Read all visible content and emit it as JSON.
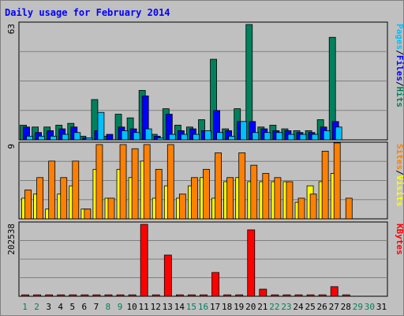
{
  "chart_data": {
    "type": "bar",
    "title": "Daily usage for February 2014",
    "categories": [
      "1",
      "2",
      "3",
      "4",
      "5",
      "6",
      "7",
      "8",
      "9",
      "10",
      "11",
      "12",
      "13",
      "14",
      "15",
      "16",
      "17",
      "18",
      "19",
      "20",
      "21",
      "22",
      "23",
      "24",
      "25",
      "26",
      "27",
      "28",
      "29",
      "30",
      "31"
    ],
    "weekend_days": [
      "1",
      "2",
      "8",
      "9",
      "15",
      "16",
      "22",
      "23",
      "29",
      "30"
    ],
    "panels": [
      {
        "id": "hits-files-pages",
        "ymax_label": "63",
        "ylim": [
          0,
          63
        ],
        "right_labels": [
          "Pages",
          "/",
          "Files",
          "/",
          "Hits"
        ],
        "series": [
          {
            "name": "Hits",
            "color": "#00805c",
            "values": [
              8,
              7,
              7,
              8,
              9,
              2,
              22,
              2,
              14,
              12,
              27,
              3,
              17,
              8,
              7,
              11,
              44,
              6,
              17,
              63,
              7,
              8,
              6,
              5,
              5,
              11,
              56,
              null,
              null,
              null,
              null
            ]
          },
          {
            "name": "Files",
            "color": "#0000ff",
            "values": [
              7,
              4,
              5,
              6,
              7,
              1,
              5,
              3,
              7,
              6,
              24,
              2,
              14,
              5,
              6,
              5,
              16,
              5,
              10,
              10,
              6,
              5,
              5,
              4,
              4,
              7,
              10,
              null,
              null,
              null,
              null
            ]
          },
          {
            "name": "Pages",
            "color": "#00c0ff",
            "values": [
              2,
              2,
              2,
              3,
              4,
              1,
              15,
              null,
              5,
              4,
              6,
              1,
              3,
              3,
              3,
              5,
              4,
              2,
              10,
              4,
              4,
              4,
              3,
              3,
              3,
              5,
              7,
              null,
              null,
              null,
              null
            ]
          }
        ]
      },
      {
        "id": "visits-sites",
        "ymax_label": "9",
        "ylim": [
          0,
          9
        ],
        "right_labels": [
          "Sites",
          "/",
          "Visits"
        ],
        "series": [
          {
            "name": "Visits",
            "color": "#ffff00",
            "values": [
              2.5,
              3,
              1.2,
              3,
              4,
              1.2,
              6,
              2.5,
              6,
              5,
              7,
              2.5,
              4,
              2.5,
              4,
              5,
              2.5,
              4.5,
              5,
              4.5,
              4.5,
              4.5,
              4.5,
              2,
              4,
              4.5,
              5.5,
              null,
              null,
              null,
              null
            ]
          },
          {
            "name": "Sites",
            "color": "#ff8000",
            "values": [
              3.5,
              5,
              7,
              5,
              7,
              1.2,
              9,
              2.5,
              9,
              8.5,
              9,
              6,
              9,
              3,
              5,
              6,
              8,
              5,
              8,
              6.5,
              5.5,
              5,
              4.5,
              2.5,
              3,
              8.2,
              9.2,
              2.5,
              null,
              null,
              null
            ]
          }
        ]
      },
      {
        "id": "kbytes",
        "ymax_label": "202538",
        "ylim": [
          0,
          202538
        ],
        "right_labels": [
          "KBytes"
        ],
        "series": [
          {
            "name": "KBytes",
            "color": "#ff0000",
            "values": [
              4000,
              4000,
              4000,
              4000,
              4000,
              4000,
              4000,
              4000,
              4000,
              4000,
              202538,
              4000,
              116000,
              4000,
              4000,
              4000,
              67000,
              4000,
              4000,
              187000,
              20000,
              4000,
              4000,
              4000,
              4000,
              4000,
              27000,
              4000,
              null,
              null,
              null
            ]
          }
        ]
      }
    ],
    "grid": true,
    "legend": "right-vertical"
  },
  "colors": {
    "background": "#c0c0c0",
    "plot_background": "#c0c0c0",
    "grid": "#808080",
    "title": "#0000ff",
    "weekday_label": "#000000",
    "weekend_label": "#00805c"
  }
}
